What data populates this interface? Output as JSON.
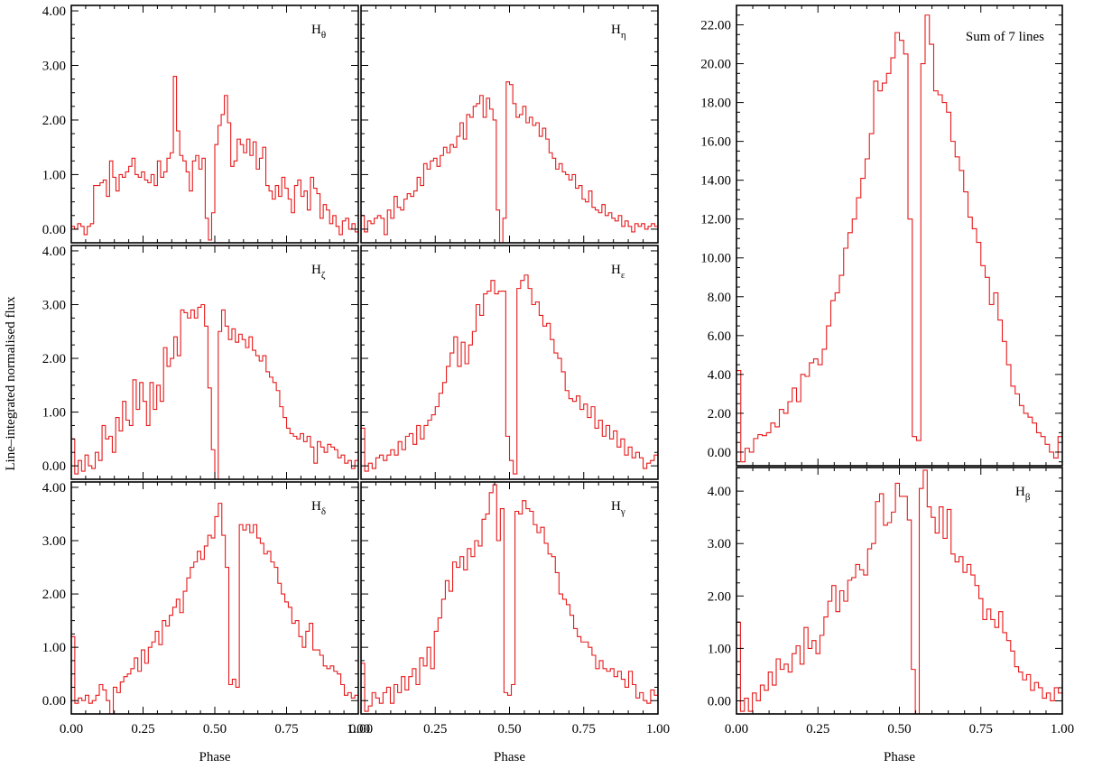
{
  "figure": {
    "ylabel": "Line–integrated normalised flux",
    "xlabel": "Phase",
    "line_color": "#e8191a"
  },
  "chart_data": [
    {
      "type": "line",
      "panel": "H-theta",
      "label": {
        "base": "H",
        "sub": "θ"
      },
      "xlabel": "",
      "ylabel": "",
      "xlim": [
        0,
        1
      ],
      "ylim": [
        -0.25,
        4.1
      ],
      "yticks": [
        "0.00",
        "1.00",
        "2.00",
        "3.00",
        "4.00"
      ],
      "xticks": [
        "0.00",
        "0.25",
        "0.50",
        "0.75",
        "1.00"
      ],
      "series": [
        {
          "values": [
            0.05,
            0.0,
            0.1,
            0.05,
            -0.1,
            0.05,
            0.1,
            0.8,
            0.8,
            0.85,
            0.9,
            0.6,
            1.25,
            0.95,
            0.7,
            1.0,
            0.95,
            1.05,
            1.15,
            1.3,
            1.0,
            0.95,
            1.05,
            0.9,
            0.85,
            1.0,
            0.8,
            1.25,
            0.95,
            1.05,
            1.3,
            1.4,
            2.8,
            1.8,
            1.35,
            1.25,
            1.05,
            0.7,
            1.25,
            1.35,
            1.1,
            1.3,
            0.2,
            -0.2,
            0.3,
            1.55,
            1.9,
            2.1,
            2.45,
            1.95,
            1.15,
            1.25,
            1.65,
            1.55,
            1.4,
            1.65,
            1.35,
            1.6,
            1.1,
            1.3,
            1.5,
            0.8,
            0.7,
            0.55,
            0.8,
            0.6,
            0.95,
            0.75,
            0.55,
            0.3,
            0.8,
            0.9,
            0.6,
            0.7,
            0.35,
            0.95,
            0.75,
            0.65,
            0.2,
            0.45,
            0.35,
            0.1,
            0.25,
            0.05,
            -0.1,
            0.15,
            0.2,
            0.0,
            0.1,
            -0.05
          ]
        }
      ]
    },
    {
      "type": "line",
      "panel": "H-eta",
      "label": {
        "base": "H",
        "sub": "η"
      },
      "xlabel": "",
      "ylabel": "",
      "xlim": [
        0,
        1
      ],
      "ylim": [
        -0.25,
        4.1
      ],
      "yticks": [
        "0.00",
        "1.00",
        "2.00",
        "3.00",
        "4.00"
      ],
      "xticks": [
        "0.00",
        "0.25",
        "0.50",
        "0.75",
        "1.00"
      ],
      "series": [
        {
          "values": [
            0.25,
            -0.05,
            0.15,
            0.1,
            0.2,
            0.25,
            0.2,
            -0.1,
            0.35,
            0.2,
            0.6,
            0.4,
            0.35,
            0.55,
            0.65,
            0.6,
            0.7,
            0.95,
            0.8,
            1.2,
            1.1,
            1.25,
            1.3,
            1.15,
            1.35,
            1.5,
            1.4,
            1.55,
            1.5,
            1.7,
            1.95,
            1.65,
            2.1,
            2.05,
            2.25,
            2.3,
            2.45,
            2.05,
            2.4,
            2.2,
            2.0,
            0.35,
            -0.25,
            0.2,
            2.7,
            2.65,
            2.3,
            2.05,
            2.1,
            2.25,
            1.95,
            2.05,
            1.9,
            1.95,
            1.7,
            1.85,
            1.65,
            1.4,
            1.3,
            1.1,
            1.2,
            1.05,
            1.0,
            0.9,
            1.0,
            0.75,
            0.8,
            0.55,
            0.5,
            0.7,
            0.4,
            0.35,
            0.3,
            0.45,
            0.25,
            0.3,
            0.2,
            0.15,
            0.25,
            0.05,
            0.15,
            0.05,
            -0.05,
            0.1,
            0.05,
            0.1,
            0.0,
            0.05,
            0.1,
            0.05
          ]
        }
      ]
    },
    {
      "type": "line",
      "panel": "H-zeta",
      "label": {
        "base": "H",
        "sub": "ζ"
      },
      "xlabel": "",
      "ylabel": "",
      "xlim": [
        0,
        1
      ],
      "ylim": [
        -0.25,
        4.1
      ],
      "yticks": [
        "0.00",
        "1.00",
        "2.00",
        "3.00",
        "4.00"
      ],
      "xticks": [
        "0.00",
        "0.25",
        "0.50",
        "0.75",
        "1.00"
      ],
      "series": [
        {
          "values": [
            0.5,
            -0.15,
            0.1,
            -0.1,
            0.2,
            0.0,
            -0.05,
            0.25,
            0.1,
            0.75,
            0.5,
            0.55,
            0.25,
            0.9,
            0.65,
            1.2,
            0.85,
            0.75,
            1.6,
            1.05,
            1.55,
            1.2,
            0.75,
            1.55,
            1.05,
            1.5,
            1.2,
            2.2,
            1.85,
            2.0,
            2.4,
            2.05,
            2.9,
            2.85,
            2.75,
            2.9,
            2.75,
            2.95,
            3.0,
            2.6,
            1.45,
            0.3,
            -0.3,
            2.5,
            2.9,
            2.6,
            2.35,
            2.55,
            2.3,
            2.45,
            2.35,
            2.2,
            2.4,
            2.15,
            2.05,
            1.95,
            2.05,
            1.75,
            1.65,
            1.55,
            1.4,
            1.1,
            0.9,
            0.7,
            0.6,
            0.55,
            0.5,
            0.6,
            0.45,
            0.55,
            0.35,
            0.05,
            0.45,
            0.35,
            0.25,
            0.4,
            0.35,
            0.3,
            0.15,
            0.2,
            0.05,
            0.1,
            -0.05,
            0.1
          ]
        }
      ]
    },
    {
      "type": "line",
      "panel": "H-epsilon",
      "label": {
        "base": "H",
        "sub": "ε"
      },
      "xlabel": "",
      "ylabel": "",
      "xlim": [
        0,
        1
      ],
      "ylim": [
        -0.25,
        4.1
      ],
      "yticks": [
        "0.00",
        "1.00",
        "2.00",
        "3.00",
        "4.00"
      ],
      "xticks": [
        "0.00",
        "0.25",
        "0.50",
        "0.75",
        "1.00"
      ],
      "series": [
        {
          "values": [
            0.7,
            -0.1,
            0.05,
            -0.05,
            0.15,
            0.2,
            0.1,
            0.2,
            0.3,
            0.2,
            0.45,
            0.3,
            0.55,
            0.6,
            0.4,
            0.75,
            0.5,
            0.75,
            0.85,
            0.95,
            1.1,
            1.35,
            1.55,
            1.85,
            2.1,
            2.4,
            1.85,
            2.3,
            1.9,
            2.25,
            2.5,
            3.0,
            2.8,
            3.2,
            3.25,
            3.45,
            3.2,
            3.25,
            3.25,
            0.55,
            0.1,
            -0.15,
            3.3,
            3.45,
            3.55,
            3.3,
            3.0,
            3.05,
            2.8,
            2.6,
            2.65,
            2.35,
            2.1,
            2.0,
            1.75,
            1.4,
            1.25,
            1.2,
            1.3,
            1.05,
            1.15,
            0.9,
            1.1,
            0.7,
            0.85,
            0.55,
            0.75,
            0.5,
            0.65,
            0.35,
            0.5,
            0.2,
            0.35,
            0.15,
            0.25,
            0.15,
            -0.05,
            0.05,
            0.1,
            0.2
          ]
        }
      ]
    },
    {
      "type": "line",
      "panel": "H-delta",
      "label": {
        "base": "H",
        "sub": "δ"
      },
      "xlabel": "Phase",
      "ylabel": "",
      "xlim": [
        0,
        1
      ],
      "ylim": [
        -0.25,
        4.1
      ],
      "yticks": [
        "0.00",
        "1.00",
        "2.00",
        "3.00",
        "4.00"
      ],
      "xticks": [
        "0.00",
        "0.25",
        "0.50",
        "0.75",
        "1.00"
      ],
      "series": [
        {
          "values": [
            1.2,
            -0.05,
            0.05,
            0.0,
            0.1,
            -0.05,
            0.0,
            0.1,
            0.3,
            0.2,
            0.0,
            -0.25,
            0.25,
            0.15,
            0.35,
            0.45,
            0.5,
            0.6,
            0.8,
            0.55,
            0.95,
            0.7,
            1.0,
            1.1,
            1.3,
            1.05,
            1.5,
            1.4,
            1.6,
            1.75,
            1.9,
            1.65,
            2.05,
            2.3,
            2.5,
            2.6,
            2.8,
            2.65,
            2.9,
            3.1,
            3.05,
            3.45,
            3.7,
            3.1,
            2.5,
            0.3,
            0.4,
            0.25,
            3.3,
            3.2,
            3.3,
            3.15,
            3.3,
            3.05,
            2.95,
            2.75,
            2.8,
            2.6,
            2.5,
            2.2,
            2.0,
            1.85,
            1.75,
            1.45,
            1.5,
            1.2,
            1.0,
            1.3,
            1.45,
            0.95,
            0.95,
            0.85,
            0.65,
            0.6,
            0.65,
            0.55,
            0.5,
            0.3,
            0.1,
            0.15,
            0.05,
            0.1
          ]
        }
      ]
    },
    {
      "type": "line",
      "panel": "H-gamma",
      "label": {
        "base": "H",
        "sub": "γ"
      },
      "xlabel": "Phase",
      "ylabel": "",
      "xlim": [
        0,
        1
      ],
      "ylim": [
        -0.25,
        4.1
      ],
      "yticks": [
        "0.00",
        "1.00",
        "2.00",
        "3.00",
        "4.00"
      ],
      "xticks": [
        "0.00",
        "0.25",
        "0.50",
        "0.75",
        "1.00"
      ],
      "series": [
        {
          "values": [
            0.7,
            -0.2,
            -0.1,
            0.15,
            0.05,
            -0.05,
            0.15,
            0.25,
            -0.05,
            0.3,
            0.15,
            0.45,
            0.2,
            0.45,
            0.6,
            0.3,
            0.8,
            0.65,
            1.0,
            0.6,
            1.3,
            1.55,
            1.9,
            2.25,
            2.05,
            2.6,
            2.5,
            2.7,
            2.45,
            2.85,
            2.7,
            3.0,
            2.9,
            3.4,
            3.5,
            3.9,
            4.05,
            3.0,
            3.6,
            0.15,
            0.1,
            0.3,
            3.55,
            3.5,
            3.75,
            3.6,
            3.55,
            3.3,
            3.15,
            3.25,
            2.95,
            2.75,
            2.7,
            2.4,
            2.0,
            1.9,
            1.8,
            1.6,
            1.35,
            1.2,
            1.1,
            1.1,
            1.0,
            0.85,
            0.6,
            0.75,
            0.6,
            0.55,
            0.6,
            0.45,
            0.55,
            0.4,
            0.25,
            0.55,
            0.3,
            0.05,
            0.15,
            0.0,
            -0.05,
            0.2,
            0.1
          ]
        }
      ]
    },
    {
      "type": "line",
      "panel": "Sum-of-7-lines",
      "label": {
        "text": "Sum of 7 lines"
      },
      "xlabel": "",
      "ylabel": "",
      "xlim": [
        0,
        1
      ],
      "ylim": [
        -0.7,
        23.0
      ],
      "yticks": [
        "0.00",
        "2.00",
        "4.00",
        "6.00",
        "8.00",
        "10.00",
        "12.00",
        "14.00",
        "16.00",
        "18.00",
        "20.00",
        "22.00"
      ],
      "xticks": [
        "0.00",
        "0.25",
        "0.50",
        "0.75",
        "1.00"
      ],
      "series": [
        {
          "values": [
            4.2,
            -0.5,
            0.2,
            0.0,
            0.7,
            0.9,
            0.85,
            1.0,
            1.5,
            1.3,
            2.2,
            2.0,
            2.6,
            3.3,
            2.6,
            4.0,
            3.9,
            4.6,
            4.8,
            4.5,
            5.3,
            6.5,
            7.8,
            8.2,
            9.1,
            10.5,
            11.3,
            12.0,
            13.1,
            14.1,
            15.1,
            16.4,
            19.1,
            18.6,
            19.0,
            19.5,
            20.3,
            21.6,
            21.2,
            20.5,
            12.0,
            0.8,
            0.6,
            20.0,
            22.5,
            21.0,
            18.6,
            18.4,
            18.0,
            17.5,
            16.0,
            15.2,
            14.5,
            13.4,
            12.1,
            11.5,
            10.8,
            9.6,
            9.0,
            7.6,
            8.2,
            6.8,
            5.7,
            4.5,
            3.4,
            3.0,
            2.4,
            2.0,
            1.8,
            1.5,
            1.0,
            0.8,
            0.4,
            0.0,
            -0.3,
            0.8
          ]
        }
      ]
    },
    {
      "type": "line",
      "panel": "H-beta",
      "label": {
        "base": "H",
        "sub": "β"
      },
      "xlabel": "Phase",
      "ylabel": "",
      "xlim": [
        0,
        1
      ],
      "ylim": [
        -0.25,
        4.45
      ],
      "yticks": [
        "0.00",
        "1.00",
        "2.00",
        "3.00",
        "4.00"
      ],
      "xticks": [
        "0.00",
        "0.25",
        "0.50",
        "0.75",
        "1.00"
      ],
      "series": [
        {
          "values": [
            1.5,
            -0.2,
            0.05,
            -0.2,
            0.15,
            0.0,
            0.3,
            0.2,
            0.55,
            0.3,
            0.8,
            0.6,
            0.7,
            0.55,
            0.9,
            1.05,
            0.7,
            1.4,
            1.0,
            1.15,
            0.9,
            1.25,
            1.6,
            1.9,
            2.2,
            1.7,
            2.1,
            1.9,
            2.3,
            2.35,
            2.6,
            2.5,
            2.4,
            2.9,
            3.0,
            3.8,
            3.95,
            3.35,
            3.4,
            3.6,
            4.15,
            3.9,
            3.9,
            3.45,
            0.6,
            -0.25,
            4.05,
            4.4,
            3.7,
            3.5,
            3.2,
            3.7,
            3.1,
            3.65,
            2.8,
            2.65,
            2.75,
            2.45,
            2.6,
            2.4,
            2.2,
            1.95,
            1.55,
            1.75,
            1.55,
            1.4,
            1.7,
            1.3,
            1.15,
            0.95,
            0.65,
            0.55,
            0.4,
            0.5,
            0.2,
            0.35,
            0.25,
            0.05,
            0.15,
            0.0,
            0.25,
            0.15
          ]
        }
      ]
    }
  ]
}
